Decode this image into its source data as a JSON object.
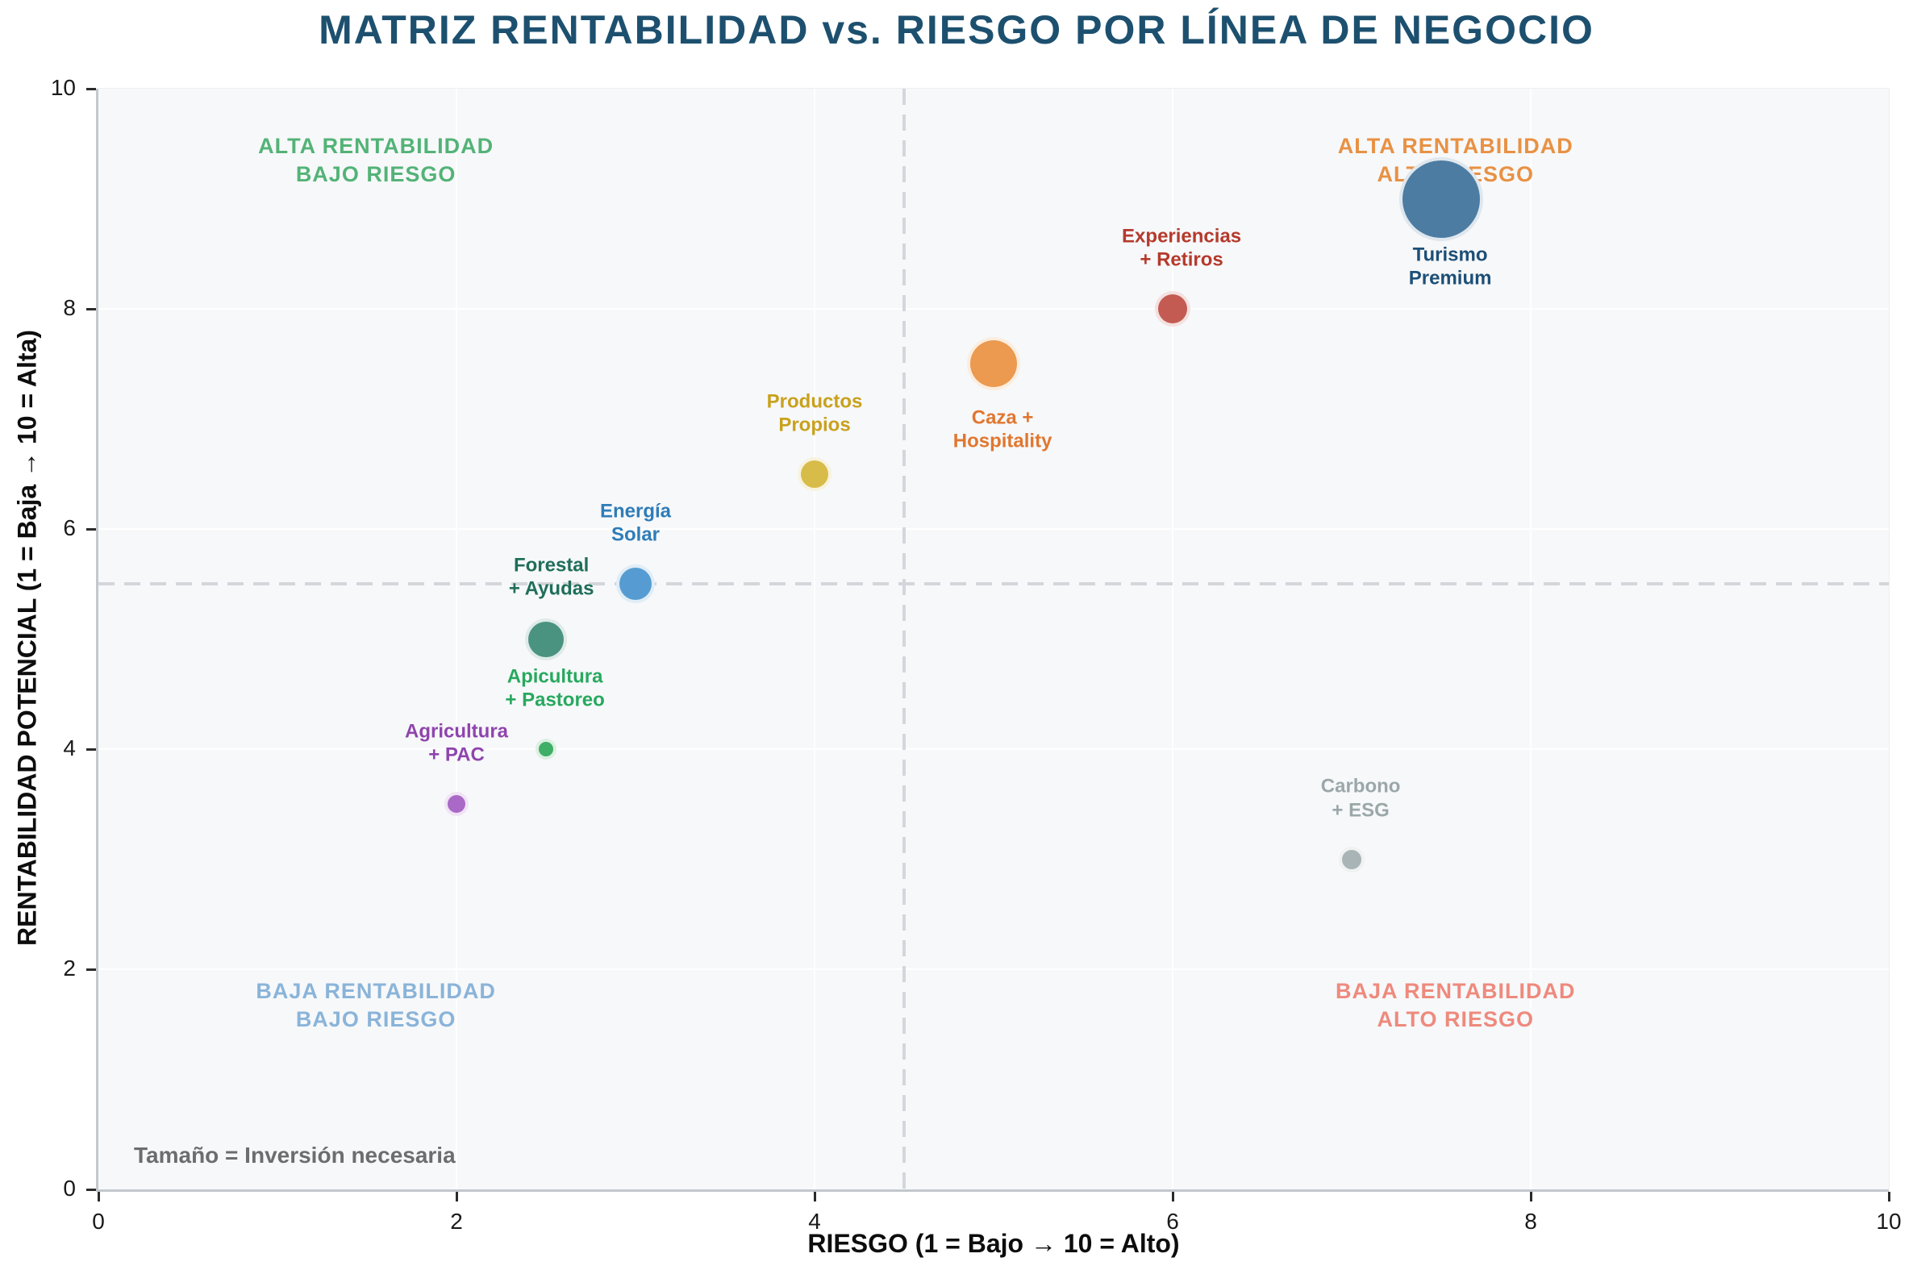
{
  "title": "MATRIZ RENTABILIDAD vs. RIESGO POR LÍNEA DE NEGOCIO",
  "chart_data": {
    "type": "scatter",
    "title": "MATRIZ RENTABILIDAD vs. RIESGO POR LÍNEA DE NEGOCIO",
    "xlabel": "RIESGO (1 = Bajo → 10 = Alto)",
    "ylabel": "RENTABILIDAD POTENCIAL (1 = Baja → 10 = Alta)",
    "xlim": [
      0,
      10
    ],
    "ylim": [
      0,
      10
    ],
    "xticks": [
      0,
      2,
      4,
      6,
      8,
      10
    ],
    "yticks": [
      0,
      2,
      4,
      6,
      8,
      10
    ],
    "grid": true,
    "size_legend": "Tamaño = Inversión necesaria",
    "quadrant_divider_x": 4.5,
    "quadrant_divider_y": 5.5,
    "quadrants": [
      {
        "lines": [
          "ALTA RENTABILIDAD",
          "BAJO RIESGO"
        ],
        "x": 1.55,
        "y": 9.35,
        "color": "#53b377"
      },
      {
        "lines": [
          "ALTA RENTABILIDAD",
          "ALTO RIESGO"
        ],
        "x": 7.58,
        "y": 9.35,
        "color": "#e89143"
      },
      {
        "lines": [
          "BAJA RENTABILIDAD",
          "BAJO RIESGO"
        ],
        "x": 1.55,
        "y": 1.67,
        "color": "#8ab4d9"
      },
      {
        "lines": [
          "BAJA RENTABILIDAD",
          "ALTO RIESGO"
        ],
        "x": 7.58,
        "y": 1.67,
        "color": "#ee8a7d"
      }
    ],
    "points": [
      {
        "name": "Turismo Premium",
        "label_lines": [
          "Turismo",
          "Premium"
        ],
        "x": 7.5,
        "y": 9.0,
        "radius_px": 48,
        "color": "#4d7ca3",
        "label_color": "#1d4f76",
        "label_x": 7.55,
        "label_y": 8.38
      },
      {
        "name": "Experiencias + Retiros",
        "label_lines": [
          "Experiencias",
          "+ Retiros"
        ],
        "x": 6.0,
        "y": 8.0,
        "radius_px": 18,
        "color": "#c35b53",
        "label_color": "#b53a2c",
        "label_x": 6.05,
        "label_y": 8.55
      },
      {
        "name": "Caza + Hospitality",
        "label_lines": [
          "Caza +",
          "Hospitality"
        ],
        "x": 5.0,
        "y": 7.5,
        "radius_px": 29,
        "color": "#eb9a4f",
        "label_color": "#e1772f",
        "label_x": 5.05,
        "label_y": 6.9
      },
      {
        "name": "Productos Propios",
        "label_lines": [
          "Productos",
          "Propios"
        ],
        "x": 4.0,
        "y": 6.5,
        "radius_px": 17,
        "color": "#d8bc49",
        "label_color": "#c9a11c",
        "label_x": 4.0,
        "label_y": 7.05
      },
      {
        "name": "Energía Solar",
        "label_lines": [
          "Energía",
          "Solar"
        ],
        "x": 3.0,
        "y": 5.5,
        "radius_px": 20,
        "color": "#569cd2",
        "label_color": "#2e7cb8",
        "label_x": 3.0,
        "label_y": 6.05
      },
      {
        "name": "Forestal + Ayudas",
        "label_lines": [
          "Forestal",
          "+ Ayudas"
        ],
        "x": 2.5,
        "y": 5.0,
        "radius_px": 22,
        "color": "#4b9381",
        "label_color": "#1f6e58",
        "label_x": 2.53,
        "label_y": 5.56
      },
      {
        "name": "Apicultura + Pastoreo",
        "label_lines": [
          "Apicultura",
          "+ Pastoreo"
        ],
        "x": 2.5,
        "y": 4.0,
        "radius_px": 9,
        "color": "#3fae66",
        "label_color": "#27a95e",
        "label_x": 2.55,
        "label_y": 4.55
      },
      {
        "name": "Agricultura + PAC",
        "label_lines": [
          "Agricultura",
          "+ PAC"
        ],
        "x": 2.0,
        "y": 3.5,
        "radius_px": 11,
        "color": "#aa69c6",
        "label_color": "#8f44ae",
        "label_x": 2.0,
        "label_y": 4.05
      },
      {
        "name": "Carbono + ESG",
        "label_lines": [
          "Carbono",
          "+ ESG"
        ],
        "x": 7.0,
        "y": 3.0,
        "radius_px": 12,
        "color": "#a9b4b6",
        "label_color": "#9ba7a9",
        "label_x": 7.05,
        "label_y": 3.55
      }
    ]
  }
}
